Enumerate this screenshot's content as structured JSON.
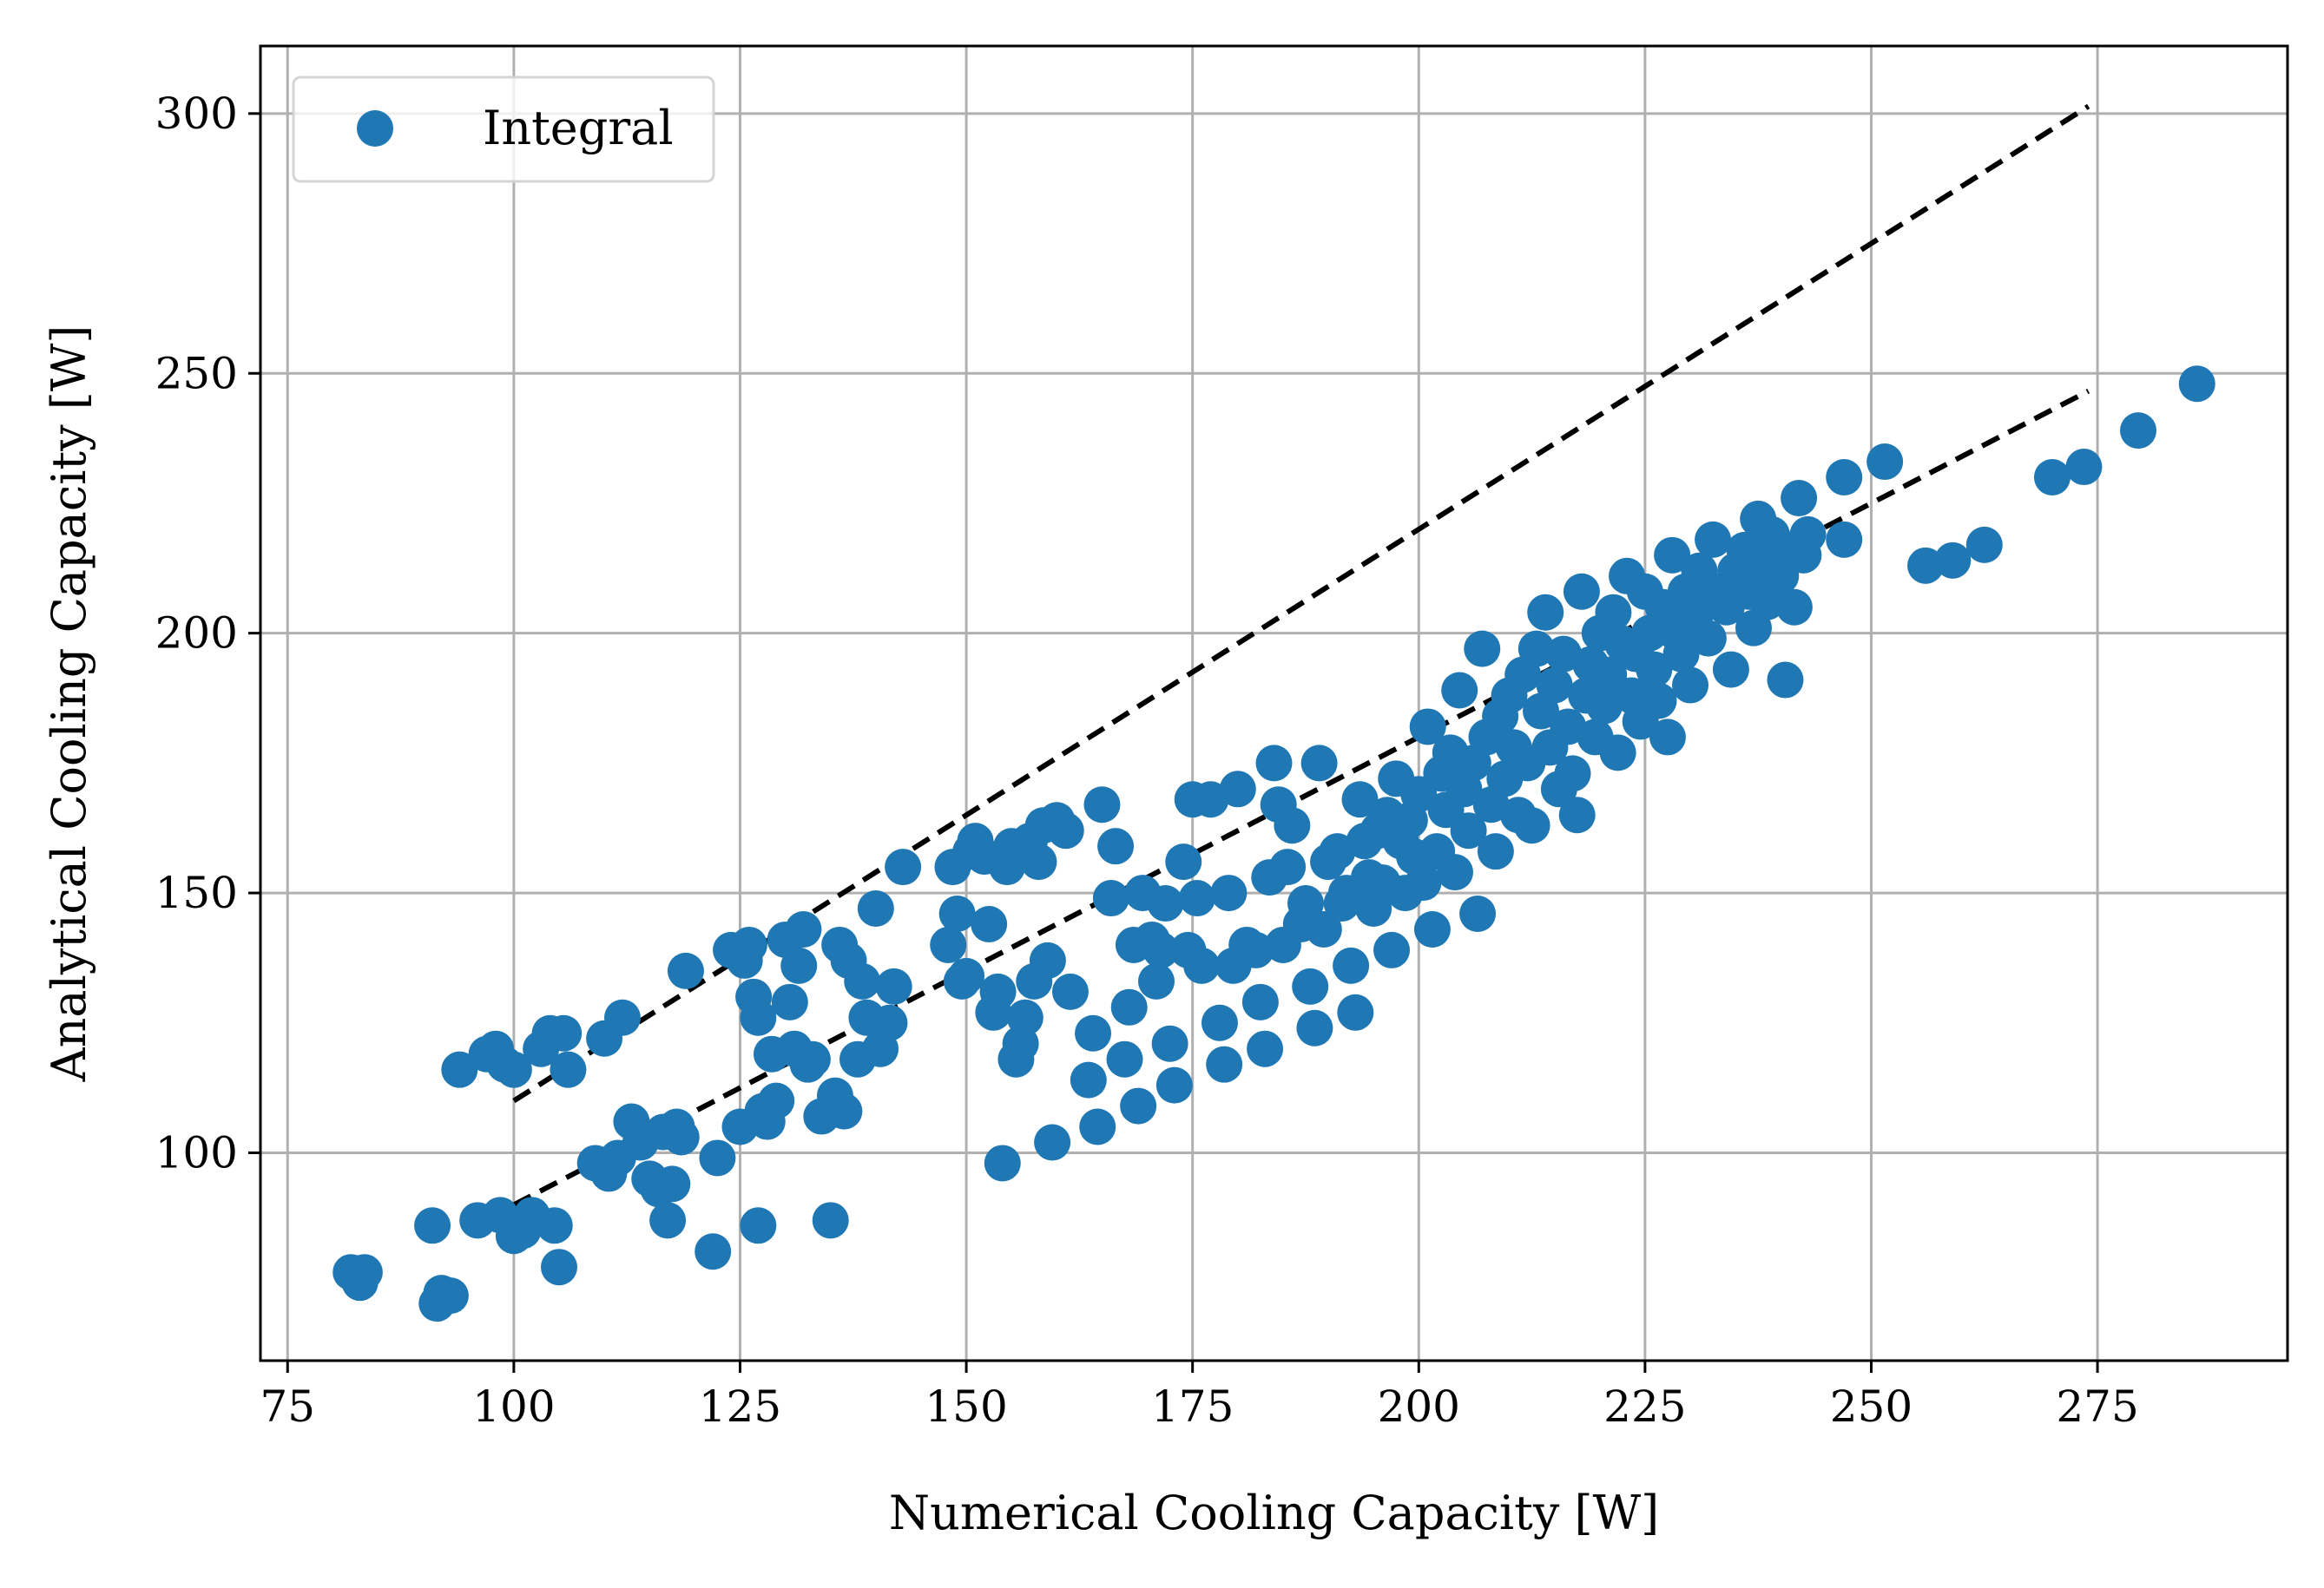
{
  "chart_data": {
    "type": "scatter",
    "xlabel": "Numerical Cooling Capacity [W]",
    "ylabel": "Analytical Cooling Capacity [W]",
    "xlim": [
      72,
      296
    ],
    "ylim": [
      60,
      313
    ],
    "xticks": [
      75,
      100,
      125,
      150,
      175,
      200,
      225,
      250,
      275
    ],
    "yticks": [
      100,
      150,
      200,
      250,
      300
    ],
    "xtick_labels": [
      "75",
      "100",
      "125",
      "150",
      "175",
      "200",
      "225",
      "250",
      "275"
    ],
    "ytick_labels": [
      "100",
      "150",
      "200",
      "250",
      "300"
    ],
    "grid": true,
    "legend": {
      "placement": "top-left",
      "entries": [
        "Integral"
      ]
    },
    "colors": {
      "series": "#1f77b4",
      "reference_lines": "#000000",
      "grid": "#b0b0b0"
    },
    "series": [
      {
        "name": "Integral",
        "points": [
          [
            82,
            77
          ],
          [
            83,
            75
          ],
          [
            83.5,
            77
          ],
          [
            91,
            86
          ],
          [
            91.5,
            71
          ],
          [
            92,
            73
          ],
          [
            93,
            72.5
          ],
          [
            94,
            116
          ],
          [
            96,
            87
          ],
          [
            97,
            119
          ],
          [
            98,
            120
          ],
          [
            98.5,
            88
          ],
          [
            99,
            117
          ],
          [
            100,
            116
          ],
          [
            100,
            84
          ],
          [
            101,
            85
          ],
          [
            102,
            88
          ],
          [
            103,
            120
          ],
          [
            104,
            123
          ],
          [
            104.5,
            86
          ],
          [
            105,
            78
          ],
          [
            105.5,
            123
          ],
          [
            106,
            116
          ],
          [
            109,
            98
          ],
          [
            110,
            122
          ],
          [
            110.5,
            96
          ],
          [
            111.5,
            99
          ],
          [
            112,
            126
          ],
          [
            113,
            106
          ],
          [
            114,
            102
          ],
          [
            115,
            95
          ],
          [
            116,
            93
          ],
          [
            116.5,
            104
          ],
          [
            117,
            87
          ],
          [
            117.5,
            94
          ],
          [
            118,
            105
          ],
          [
            118.5,
            103
          ],
          [
            119,
            135
          ],
          [
            122,
            81
          ],
          [
            122.5,
            99
          ],
          [
            124,
            139
          ],
          [
            125,
            105
          ],
          [
            125.5,
            137
          ],
          [
            126,
            140
          ],
          [
            126.5,
            130
          ],
          [
            127,
            86
          ],
          [
            127,
            126
          ],
          [
            127.5,
            108
          ],
          [
            128,
            106
          ],
          [
            128.5,
            119
          ],
          [
            129,
            110
          ],
          [
            130,
            141
          ],
          [
            130.5,
            129
          ],
          [
            131,
            120
          ],
          [
            131.5,
            136
          ],
          [
            132,
            143
          ],
          [
            132.5,
            117
          ],
          [
            133,
            118
          ],
          [
            134,
            107
          ],
          [
            135,
            87
          ],
          [
            135.5,
            111
          ],
          [
            136,
            140
          ],
          [
            136.5,
            108
          ],
          [
            137,
            137
          ],
          [
            138,
            118
          ],
          [
            138.5,
            133
          ],
          [
            139,
            126
          ],
          [
            140,
            147
          ],
          [
            140.5,
            120
          ],
          [
            141.5,
            125
          ],
          [
            142,
            132
          ],
          [
            143,
            155
          ],
          [
            148,
            140
          ],
          [
            148.5,
            155
          ],
          [
            149,
            146
          ],
          [
            149.5,
            133
          ],
          [
            150,
            134
          ],
          [
            150.5,
            158
          ],
          [
            151,
            160
          ],
          [
            152,
            157
          ],
          [
            152.5,
            144
          ],
          [
            153,
            127
          ],
          [
            153.5,
            131
          ],
          [
            154,
            98
          ],
          [
            154.5,
            155
          ],
          [
            155,
            159
          ],
          [
            155.5,
            118
          ],
          [
            156,
            121
          ],
          [
            156.5,
            126
          ],
          [
            157,
            160
          ],
          [
            157.5,
            133
          ],
          [
            158,
            156
          ],
          [
            158.5,
            163
          ],
          [
            159,
            137
          ],
          [
            159.5,
            102
          ],
          [
            160,
            164
          ],
          [
            161,
            162
          ],
          [
            161.5,
            131
          ],
          [
            163.5,
            114
          ],
          [
            164,
            123
          ],
          [
            164.5,
            105
          ],
          [
            165,
            167
          ],
          [
            166,
            149
          ],
          [
            166.5,
            159
          ],
          [
            167.5,
            118
          ],
          [
            168,
            128
          ],
          [
            168.5,
            140
          ],
          [
            169,
            109
          ],
          [
            169.5,
            150
          ],
          [
            170.5,
            141
          ],
          [
            171,
            133
          ],
          [
            171.5,
            139
          ],
          [
            172,
            148
          ],
          [
            172.5,
            121
          ],
          [
            173,
            113
          ],
          [
            174,
            156
          ],
          [
            174.5,
            139
          ],
          [
            175,
            168
          ],
          [
            175.5,
            149
          ],
          [
            176,
            136
          ],
          [
            177,
            168
          ],
          [
            178,
            125
          ],
          [
            178.5,
            117
          ],
          [
            179,
            150
          ],
          [
            179.5,
            136
          ],
          [
            180,
            170
          ],
          [
            181,
            140
          ],
          [
            182,
            139
          ],
          [
            182.5,
            129
          ],
          [
            183,
            120
          ],
          [
            183.5,
            153
          ],
          [
            184,
            175
          ],
          [
            184.5,
            167
          ],
          [
            185,
            140
          ],
          [
            185.5,
            155
          ],
          [
            186,
            163
          ],
          [
            187,
            144
          ],
          [
            187.5,
            148
          ],
          [
            188,
            132
          ],
          [
            188.5,
            124
          ],
          [
            189,
            175
          ],
          [
            189.5,
            143
          ],
          [
            190,
            156
          ],
          [
            191,
            158
          ],
          [
            191.5,
            148
          ],
          [
            192,
            150
          ],
          [
            192.5,
            136
          ],
          [
            193,
            127
          ],
          [
            193.5,
            168
          ],
          [
            194,
            160
          ],
          [
            194.5,
            153
          ],
          [
            195,
            147
          ],
          [
            195.5,
            162
          ],
          [
            196,
            152
          ],
          [
            196.5,
            165
          ],
          [
            197,
            139
          ],
          [
            197.5,
            172
          ],
          [
            198,
            160
          ],
          [
            198.5,
            150
          ],
          [
            199,
            164
          ],
          [
            199.5,
            157
          ],
          [
            200,
            169
          ],
          [
            200.5,
            152
          ],
          [
            201,
            182
          ],
          [
            201.5,
            143
          ],
          [
            202,
            158
          ],
          [
            202.5,
            173
          ],
          [
            203,
            166
          ],
          [
            203.5,
            177
          ],
          [
            204,
            154
          ],
          [
            204.5,
            189
          ],
          [
            205,
            170
          ],
          [
            205.5,
            162
          ],
          [
            206,
            175
          ],
          [
            206.5,
            146
          ],
          [
            207,
            197
          ],
          [
            207.5,
            180
          ],
          [
            208,
            167
          ],
          [
            208.5,
            158
          ],
          [
            209,
            184
          ],
          [
            209.5,
            172
          ],
          [
            210,
            188
          ],
          [
            210.5,
            178
          ],
          [
            211,
            165
          ],
          [
            211.5,
            192
          ],
          [
            212,
            175
          ],
          [
            212.5,
            163
          ],
          [
            213,
            197
          ],
          [
            213.5,
            185
          ],
          [
            214,
            204
          ],
          [
            214.5,
            178
          ],
          [
            215,
            190
          ],
          [
            215.5,
            170
          ],
          [
            216,
            196
          ],
          [
            216.5,
            182
          ],
          [
            217,
            173
          ],
          [
            217.5,
            165
          ],
          [
            218,
            208
          ],
          [
            218.5,
            188
          ],
          [
            219,
            194
          ],
          [
            219.5,
            180
          ],
          [
            220,
            200
          ],
          [
            220.5,
            186
          ],
          [
            221,
            192
          ],
          [
            221.5,
            204
          ],
          [
            222,
            177
          ],
          [
            222.5,
            198
          ],
          [
            223,
            211
          ],
          [
            223.5,
            188
          ],
          [
            224,
            196
          ],
          [
            224.5,
            183
          ],
          [
            225,
            208
          ],
          [
            225.5,
            200
          ],
          [
            226,
            193
          ],
          [
            226.5,
            187
          ],
          [
            227,
            205
          ],
          [
            227.5,
            180
          ],
          [
            228,
            215
          ],
          [
            228.5,
            200
          ],
          [
            229,
            196
          ],
          [
            229.5,
            208
          ],
          [
            230,
            190
          ],
          [
            230.5,
            203
          ],
          [
            231,
            212
          ],
          [
            232,
            199
          ],
          [
            232.5,
            218
          ],
          [
            233,
            208
          ],
          [
            234,
            205
          ],
          [
            234.5,
            193
          ],
          [
            235,
            212
          ],
          [
            236,
            216
          ],
          [
            236.5,
            208
          ],
          [
            237,
            201
          ],
          [
            237.5,
            222
          ],
          [
            238,
            213
          ],
          [
            238.5,
            206
          ],
          [
            239,
            219
          ],
          [
            240,
            211
          ],
          [
            240.5,
            191
          ],
          [
            241,
            216
          ],
          [
            241.5,
            205
          ],
          [
            242,
            226
          ],
          [
            242.5,
            215
          ],
          [
            243,
            219
          ],
          [
            247,
            230
          ],
          [
            247,
            218
          ],
          [
            251.5,
            233
          ],
          [
            256,
            213
          ],
          [
            259,
            214
          ],
          [
            262.5,
            217
          ],
          [
            270,
            230
          ],
          [
            273.5,
            232
          ],
          [
            279.5,
            239
          ],
          [
            286,
            248
          ]
        ]
      }
    ],
    "reference_lines": [
      {
        "style": "dashed",
        "x": [
          100,
          274
        ],
        "y": [
          110,
          301.4
        ]
      },
      {
        "style": "dashed",
        "x": [
          100,
          274
        ],
        "y": [
          90,
          246.6
        ]
      }
    ]
  }
}
